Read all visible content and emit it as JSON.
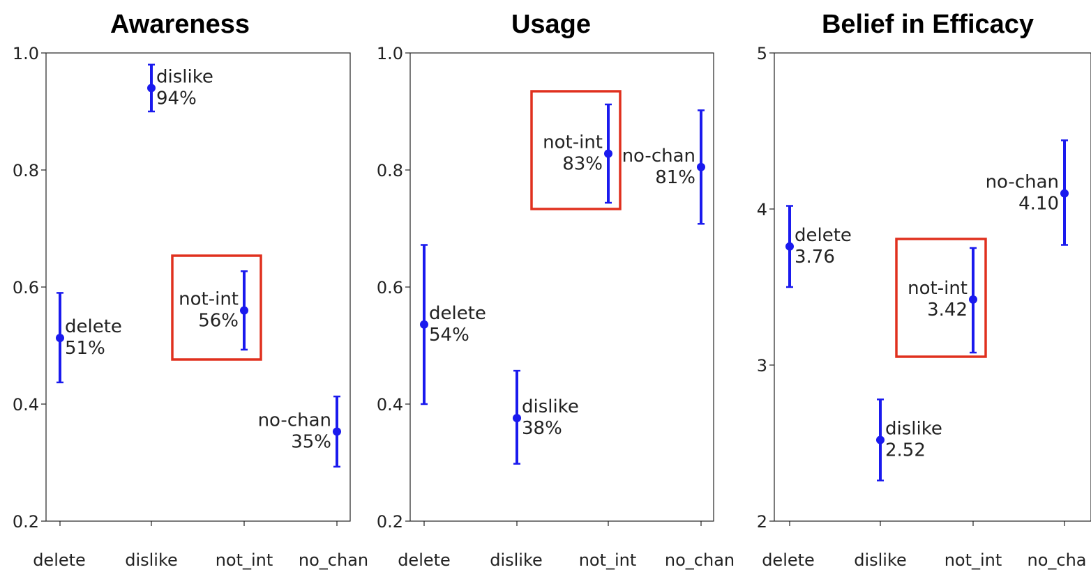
{
  "chart_data": [
    {
      "type": "errorbar",
      "title": "Awareness",
      "categories": [
        "delete",
        "dislike",
        "not_int",
        "no_chan"
      ],
      "ylim": [
        0.2,
        1.0
      ],
      "ytick_labels": [
        "0.2",
        "0.4",
        "0.6",
        "0.8",
        "1.0"
      ],
      "series": [
        {
          "name": "delete",
          "value": 0.513,
          "low": 0.437,
          "high": 0.59,
          "label_line1": "delete",
          "label_line2": "51%",
          "label_side": "right",
          "highlight": false
        },
        {
          "name": "dislike",
          "value": 0.94,
          "low": 0.9,
          "high": 0.98,
          "label_line1": "dislike",
          "label_line2": "94%",
          "label_side": "right",
          "highlight": false
        },
        {
          "name": "not_int",
          "value": 0.56,
          "low": 0.493,
          "high": 0.627,
          "label_line1": "not-int",
          "label_line2": "56%",
          "label_side": "left",
          "highlight": true
        },
        {
          "name": "no_chan",
          "value": 0.353,
          "low": 0.293,
          "high": 0.413,
          "label_line1": "no-chan",
          "label_line2": "35%",
          "label_side": "left",
          "highlight": false
        }
      ]
    },
    {
      "type": "errorbar",
      "title": "Usage",
      "categories": [
        "delete",
        "dislike",
        "not_int",
        "no_chan"
      ],
      "ylim": [
        0.2,
        1.0
      ],
      "ytick_labels": [
        "0.2",
        "0.4",
        "0.6",
        "0.8",
        "1.0"
      ],
      "series": [
        {
          "name": "delete",
          "value": 0.536,
          "low": 0.4,
          "high": 0.672,
          "label_line1": "delete",
          "label_line2": "54%",
          "label_side": "right",
          "highlight": false
        },
        {
          "name": "dislike",
          "value": 0.376,
          "low": 0.298,
          "high": 0.457,
          "label_line1": "dislike",
          "label_line2": "38%",
          "label_side": "right",
          "highlight": false
        },
        {
          "name": "not_int",
          "value": 0.828,
          "low": 0.744,
          "high": 0.912,
          "label_line1": "not-int",
          "label_line2": "83%",
          "label_side": "left",
          "highlight": true
        },
        {
          "name": "no_chan",
          "value": 0.805,
          "low": 0.708,
          "high": 0.902,
          "label_line1": "no-chan",
          "label_line2": "81%",
          "label_side": "left",
          "highlight": false
        }
      ]
    },
    {
      "type": "errorbar",
      "title": "Belief in Efficacy",
      "categories": [
        "delete",
        "dislike",
        "not_int",
        "no_cha"
      ],
      "ylim": [
        2,
        5
      ],
      "ytick_labels": [
        "2",
        "3",
        "4",
        "5"
      ],
      "series": [
        {
          "name": "delete",
          "value": 3.76,
          "low": 3.5,
          "high": 4.02,
          "label_line1": "delete",
          "label_line2": "3.76",
          "label_side": "right",
          "highlight": false
        },
        {
          "name": "dislike",
          "value": 2.52,
          "low": 2.26,
          "high": 2.78,
          "label_line1": "dislike",
          "label_line2": "2.52",
          "label_side": "right",
          "highlight": false
        },
        {
          "name": "not_int",
          "value": 3.42,
          "low": 3.08,
          "high": 3.75,
          "label_line1": "not-int",
          "label_line2": "3.42",
          "label_side": "left",
          "highlight": true
        },
        {
          "name": "no_chan",
          "value": 4.1,
          "low": 3.77,
          "high": 4.44,
          "label_line1": "no-chan",
          "label_line2": "4.10",
          "label_side": "left",
          "highlight": false
        }
      ]
    }
  ],
  "colors": {
    "marker": "#1a1aee",
    "highlight_box": "#e0301e",
    "frame": "#222222"
  }
}
